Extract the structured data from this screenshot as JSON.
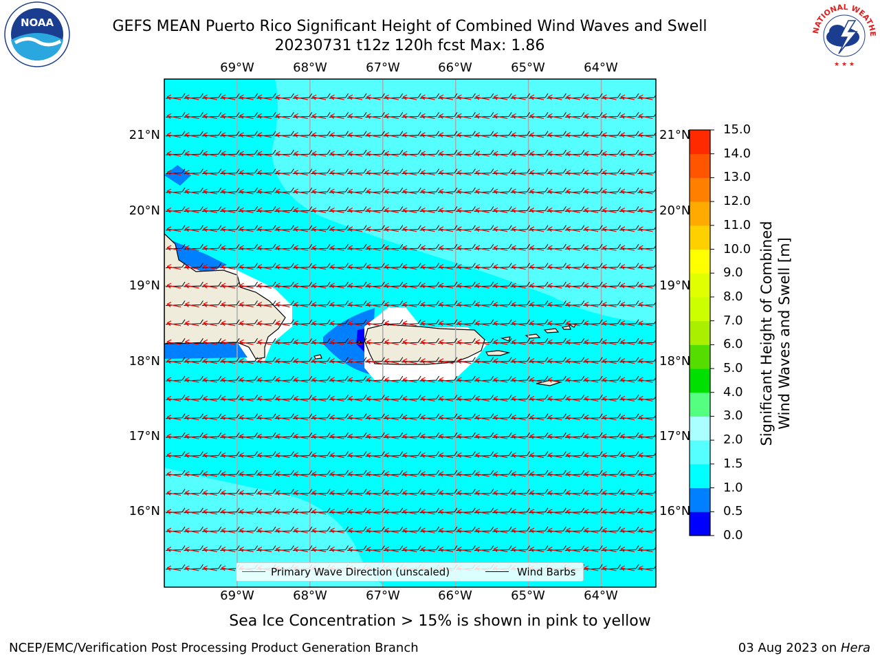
{
  "title_line1": "GEFS MEAN Puerto Rico Significant Height of Combined Wind Waves and Swell",
  "title_line2": "20230731 t12z 120h fcst   Max: 1.86",
  "logos": {
    "noaa_text": "NOAA",
    "nws_text": "NATIONAL WEATHER SERVICE"
  },
  "map": {
    "lon_labels": [
      "69°W",
      "68°W",
      "67°W",
      "66°W",
      "65°W",
      "64°W"
    ],
    "lat_labels": [
      "21°N",
      "20°N",
      "19°N",
      "18°N",
      "17°N",
      "16°N"
    ],
    "lon_values": [
      -69,
      -68,
      -67,
      -66,
      -65,
      -64
    ],
    "lat_values": [
      21,
      20,
      19,
      18,
      17,
      16
    ],
    "lon_range": [
      -70,
      -63.25
    ],
    "lat_range": [
      15.0,
      21.75
    ],
    "colors": {
      "sea_main": "#00ffff",
      "sea_light": "#55ffff",
      "shallow": "#0080ff",
      "deep": "#0000ff",
      "land": "#efecdc",
      "coast_band": "#ffffff",
      "wave_arrow": "#ff0000",
      "wind_barb": "#000000",
      "grid": "#aaaaaa"
    },
    "legend": {
      "wave_label": "Primary Wave Direction (unscaled)",
      "wind_label": "Wind Barbs"
    }
  },
  "colorbar": {
    "title": "Significant Height of Combined\nWind Waves and Swell [m]",
    "levels": [
      "0.0",
      "0.5",
      "1.0",
      "1.5",
      "2.0",
      "3.0",
      "4.0",
      "5.0",
      "6.0",
      "7.0",
      "8.0",
      "9.0",
      "10.0",
      "11.0",
      "12.0",
      "13.0",
      "14.0",
      "15.0"
    ],
    "colors": [
      "#0000ff",
      "#0080ff",
      "#00ffff",
      "#55ffff",
      "#aaffff",
      "#55ff80",
      "#00e000",
      "#55dd00",
      "#aaee00",
      "#ccff00",
      "#e0ff00",
      "#ffff00",
      "#ffd000",
      "#ffaa00",
      "#ff8000",
      "#ff5500",
      "#ff2a00"
    ]
  },
  "footer": {
    "note": "Sea Ice Concentration > 15% is shown in pink to yellow",
    "left": "NCEP/EMC/Verification Post Processing Product Generation Branch",
    "right_date": "03 Aug 2023 on ",
    "right_host": "Hera"
  }
}
